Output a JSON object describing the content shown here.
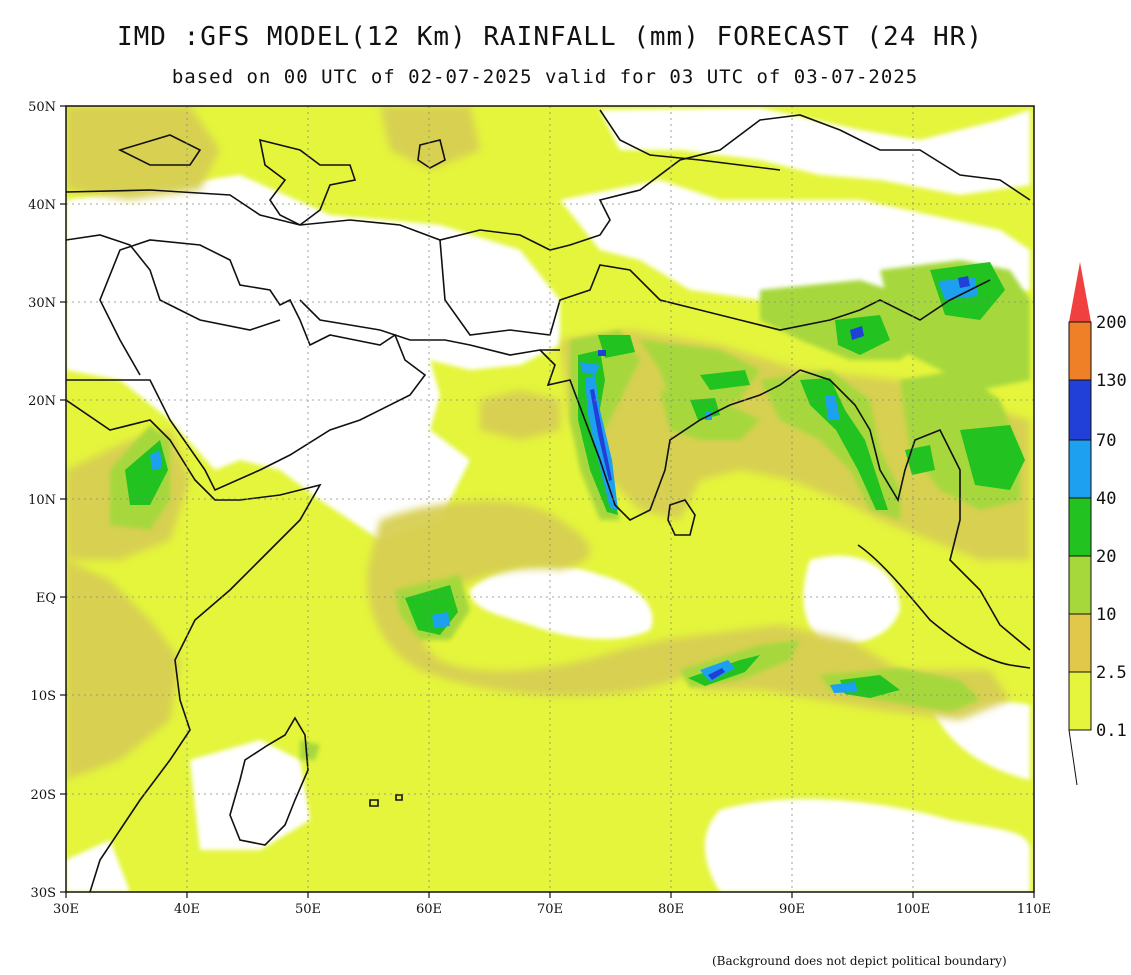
{
  "title": "IMD :GFS MODEL(12 Km) RAINFALL (mm) FORECAST (24 HR)",
  "subtitle": "based on 00 UTC of 02-07-2025 valid for 03 UTC of 03-07-2025",
  "footnote": "(Background does not depict political boundary)",
  "axes": {
    "lat_labels": [
      "50N",
      "40N",
      "30N",
      "20N",
      "10N",
      "EQ",
      "10S",
      "20S",
      "30S"
    ],
    "lon_labels": [
      "30E",
      "40E",
      "50E",
      "60E",
      "70E",
      "80E",
      "90E",
      "100E",
      "110E"
    ],
    "lat_range": [
      -30,
      50
    ],
    "lon_range": [
      30,
      110
    ]
  },
  "legend": {
    "levels": [
      "0.1",
      "2.5",
      "10",
      "20",
      "40",
      "70",
      "130",
      "200"
    ],
    "colors": [
      "#e4f53c",
      "#e1c74a",
      "#a6d83c",
      "#22c321",
      "#1ea0f0",
      "#2040d8",
      "#f08028",
      "#f04040"
    ]
  },
  "colors": {
    "light": "#e4f53c",
    "tan": "#d7cf52",
    "lightgreen": "#a6d83c",
    "green": "#22c321",
    "cyan": "#1ea0f0",
    "blue": "#2040d8"
  }
}
